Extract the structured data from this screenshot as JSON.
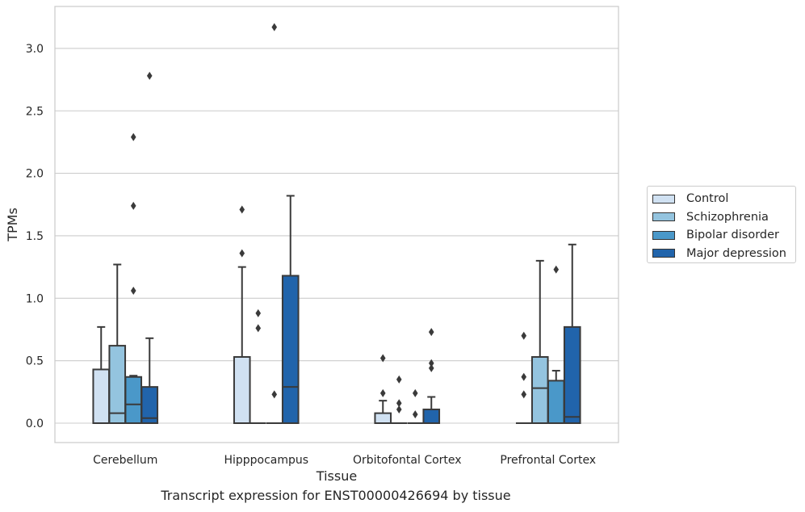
{
  "chart_data": {
    "type": "box",
    "title": "",
    "caption": "Transcript expression for ENST00000426694 by tissue",
    "xlabel": "Tissue",
    "ylabel": "TPMs",
    "ylim": [
      -0.15,
      3.35
    ],
    "yticks": [
      "0.0",
      "0.5",
      "1.0",
      "1.5",
      "2.0",
      "2.5",
      "3.0"
    ],
    "yticks_values": [
      0,
      0.5,
      1.0,
      1.5,
      2.0,
      2.5,
      3.0
    ],
    "grid": "horizontal",
    "legend_placement": "right",
    "categories": [
      "Cerebellum",
      "Hipppocampus",
      "Orbitofontal Cortex",
      "Prefrontal Cortex"
    ],
    "series": [
      {
        "name": "Control",
        "color": "#d0e1f2",
        "boxes": [
          {
            "min": 0,
            "q1": 0,
            "median": 0,
            "q3": 0.43,
            "max": 0.77,
            "outliers": []
          },
          {
            "min": 0,
            "q1": 0,
            "median": 0,
            "q3": 0.53,
            "max": 1.25,
            "outliers": [
              1.36,
              1.71
            ]
          },
          {
            "min": 0,
            "q1": 0,
            "median": 0,
            "q3": 0.08,
            "max": 0.18,
            "outliers": [
              0.24,
              0.52
            ]
          },
          {
            "min": 0,
            "q1": 0,
            "median": 0,
            "q3": 0,
            "max": 0,
            "outliers": [
              0.23,
              0.37,
              0.7
            ]
          }
        ]
      },
      {
        "name": "Schizophrenia",
        "color": "#94c4df",
        "boxes": [
          {
            "min": 0,
            "q1": 0,
            "median": 0.08,
            "q3": 0.62,
            "max": 1.27,
            "outliers": []
          },
          {
            "min": 0,
            "q1": 0,
            "median": 0,
            "q3": 0,
            "max": 0,
            "outliers": [
              0.76,
              0.88
            ]
          },
          {
            "min": 0,
            "q1": 0,
            "median": 0,
            "q3": 0,
            "max": 0,
            "outliers": [
              0.11,
              0.16,
              0.35
            ]
          },
          {
            "min": 0,
            "q1": 0,
            "median": 0.28,
            "q3": 0.53,
            "max": 1.3,
            "outliers": []
          }
        ]
      },
      {
        "name": "Bipolar disorder",
        "color": "#4a98c9",
        "boxes": [
          {
            "min": 0,
            "q1": 0,
            "median": 0.15,
            "q3": 0.37,
            "max": 0.38,
            "outliers": [
              1.06,
              1.74,
              2.29
            ]
          },
          {
            "min": 0,
            "q1": 0,
            "median": 0,
            "q3": 0,
            "max": 0,
            "outliers": [
              0.23,
              3.17
            ]
          },
          {
            "min": 0,
            "q1": 0,
            "median": 0,
            "q3": 0,
            "max": 0,
            "outliers": [
              0.07,
              0.24
            ]
          },
          {
            "min": 0,
            "q1": 0,
            "median": 0,
            "q3": 0.34,
            "max": 0.42,
            "outliers": [
              1.23
            ]
          }
        ]
      },
      {
        "name": "Major depression",
        "color": "#2164ab",
        "boxes": [
          {
            "min": 0,
            "q1": 0,
            "median": 0.04,
            "q3": 0.29,
            "max": 0.68,
            "outliers": [
              2.78
            ]
          },
          {
            "min": 0,
            "q1": 0,
            "median": 0.29,
            "q3": 1.18,
            "max": 1.82,
            "outliers": []
          },
          {
            "min": 0,
            "q1": 0,
            "median": 0,
            "q3": 0.11,
            "max": 0.21,
            "outliers": [
              0.44,
              0.48,
              0.73
            ]
          },
          {
            "min": 0,
            "q1": 0,
            "median": 0.05,
            "q3": 0.77,
            "max": 1.43,
            "outliers": []
          }
        ]
      }
    ]
  }
}
